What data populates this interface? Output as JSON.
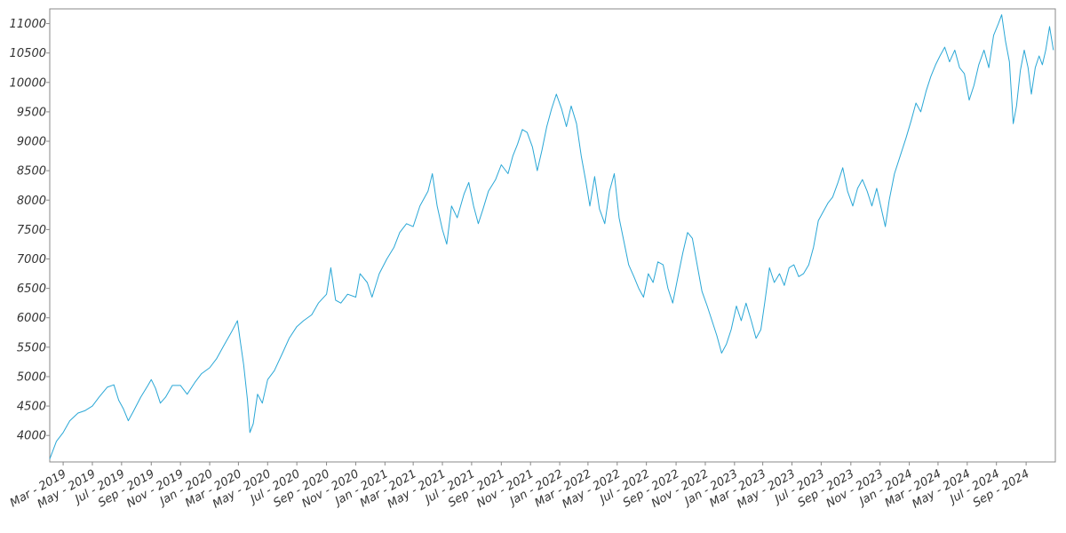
{
  "chart_data": {
    "type": "line",
    "title": "",
    "xlabel": "",
    "ylabel": "",
    "ylim": [
      3550,
      11250
    ],
    "xlim": [
      "2019-02-01",
      "2024-11-01"
    ],
    "grid": false,
    "line_color": "#2aa7d6",
    "yticks": [
      {
        "value": 4000,
        "label": "4000"
      },
      {
        "value": 4500,
        "label": "4500"
      },
      {
        "value": 5000,
        "label": "5000"
      },
      {
        "value": 5500,
        "label": "5500"
      },
      {
        "value": 6000,
        "label": "6000"
      },
      {
        "value": 6500,
        "label": "6500"
      },
      {
        "value": 7000,
        "label": "7000"
      },
      {
        "value": 7500,
        "label": "7500"
      },
      {
        "value": 8000,
        "label": "8000"
      },
      {
        "value": 8500,
        "label": "8500"
      },
      {
        "value": 9000,
        "label": "9000"
      },
      {
        "value": 9500,
        "label": "9500"
      },
      {
        "value": 10000,
        "label": "10000"
      },
      {
        "value": 10500,
        "label": "10500"
      },
      {
        "value": 11000,
        "label": "11000"
      }
    ],
    "xticks": [
      {
        "date": "2019-03-01",
        "label": "Mar - 2019"
      },
      {
        "date": "2019-05-01",
        "label": "May - 2019"
      },
      {
        "date": "2019-07-01",
        "label": "Jul - 2019"
      },
      {
        "date": "2019-09-01",
        "label": "Sep - 2019"
      },
      {
        "date": "2019-11-01",
        "label": "Nov - 2019"
      },
      {
        "date": "2020-01-01",
        "label": "Jan - 2020"
      },
      {
        "date": "2020-03-01",
        "label": "Mar - 2020"
      },
      {
        "date": "2020-05-01",
        "label": "May - 2020"
      },
      {
        "date": "2020-07-01",
        "label": "Jul - 2020"
      },
      {
        "date": "2020-09-01",
        "label": "Sep - 2020"
      },
      {
        "date": "2020-11-01",
        "label": "Nov - 2020"
      },
      {
        "date": "2021-01-01",
        "label": "Jan - 2021"
      },
      {
        "date": "2021-03-01",
        "label": "Mar - 2021"
      },
      {
        "date": "2021-05-01",
        "label": "May - 2021"
      },
      {
        "date": "2021-07-01",
        "label": "Jul - 2021"
      },
      {
        "date": "2021-09-01",
        "label": "Sep - 2021"
      },
      {
        "date": "2021-11-01",
        "label": "Nov - 2021"
      },
      {
        "date": "2022-01-01",
        "label": "Jan - 2022"
      },
      {
        "date": "2022-03-01",
        "label": "Mar - 2022"
      },
      {
        "date": "2022-05-01",
        "label": "May - 2022"
      },
      {
        "date": "2022-07-01",
        "label": "Jul - 2022"
      },
      {
        "date": "2022-09-01",
        "label": "Sep - 2022"
      },
      {
        "date": "2022-11-01",
        "label": "Nov - 2022"
      },
      {
        "date": "2023-01-01",
        "label": "Jan - 2023"
      },
      {
        "date": "2023-03-01",
        "label": "Mar - 2023"
      },
      {
        "date": "2023-05-01",
        "label": "May - 2023"
      },
      {
        "date": "2023-07-01",
        "label": "Jul - 2023"
      },
      {
        "date": "2023-09-01",
        "label": "Sep - 2023"
      },
      {
        "date": "2023-11-01",
        "label": "Nov - 2023"
      },
      {
        "date": "2024-01-01",
        "label": "Jan - 2024"
      },
      {
        "date": "2024-03-01",
        "label": "Mar - 2024"
      },
      {
        "date": "2024-05-01",
        "label": "May - 2024"
      },
      {
        "date": "2024-07-01",
        "label": "Jul - 2024"
      },
      {
        "date": "2024-09-01",
        "label": "Sep - 2024"
      }
    ],
    "series": [
      {
        "points": [
          [
            "2019-02-01",
            3600
          ],
          [
            "2019-02-15",
            3900
          ],
          [
            "2019-03-01",
            4050
          ],
          [
            "2019-03-15",
            4250
          ],
          [
            "2019-04-01",
            4380
          ],
          [
            "2019-04-15",
            4420
          ],
          [
            "2019-05-01",
            4500
          ],
          [
            "2019-05-15",
            4650
          ],
          [
            "2019-06-01",
            4820
          ],
          [
            "2019-06-15",
            4860
          ],
          [
            "2019-06-25",
            4600
          ],
          [
            "2019-07-05",
            4450
          ],
          [
            "2019-07-15",
            4250
          ],
          [
            "2019-07-25",
            4400
          ],
          [
            "2019-08-10",
            4650
          ],
          [
            "2019-08-25",
            4850
          ],
          [
            "2019-09-01",
            4950
          ],
          [
            "2019-09-10",
            4800
          ],
          [
            "2019-09-20",
            4550
          ],
          [
            "2019-10-01",
            4650
          ],
          [
            "2019-10-15",
            4850
          ],
          [
            "2019-11-01",
            4850
          ],
          [
            "2019-11-15",
            4700
          ],
          [
            "2019-12-01",
            4900
          ],
          [
            "2019-12-15",
            5050
          ],
          [
            "2020-01-01",
            5150
          ],
          [
            "2020-01-15",
            5300
          ],
          [
            "2020-02-01",
            5550
          ],
          [
            "2020-02-15",
            5750
          ],
          [
            "2020-02-28",
            5950
          ],
          [
            "2020-03-05",
            5600
          ],
          [
            "2020-03-12",
            5200
          ],
          [
            "2020-03-20",
            4600
          ],
          [
            "2020-03-25",
            4050
          ],
          [
            "2020-04-01",
            4200
          ],
          [
            "2020-04-10",
            4700
          ],
          [
            "2020-04-20",
            4550
          ],
          [
            "2020-05-01",
            4950
          ],
          [
            "2020-05-15",
            5100
          ],
          [
            "2020-06-01",
            5400
          ],
          [
            "2020-06-15",
            5650
          ],
          [
            "2020-07-01",
            5850
          ],
          [
            "2020-07-15",
            5950
          ],
          [
            "2020-08-01",
            6050
          ],
          [
            "2020-08-15",
            6250
          ],
          [
            "2020-09-01",
            6400
          ],
          [
            "2020-09-10",
            6850
          ],
          [
            "2020-09-20",
            6300
          ],
          [
            "2020-10-01",
            6250
          ],
          [
            "2020-10-15",
            6400
          ],
          [
            "2020-11-01",
            6350
          ],
          [
            "2020-11-10",
            6750
          ],
          [
            "2020-11-25",
            6600
          ],
          [
            "2020-12-05",
            6350
          ],
          [
            "2020-12-20",
            6750
          ],
          [
            "2021-01-05",
            7000
          ],
          [
            "2021-01-20",
            7200
          ],
          [
            "2021-02-01",
            7450
          ],
          [
            "2021-02-15",
            7600
          ],
          [
            "2021-03-01",
            7550
          ],
          [
            "2021-03-15",
            7900
          ],
          [
            "2021-04-01",
            8150
          ],
          [
            "2021-04-10",
            8450
          ],
          [
            "2021-04-20",
            7900
          ],
          [
            "2021-05-01",
            7500
          ],
          [
            "2021-05-10",
            7250
          ],
          [
            "2021-05-20",
            7900
          ],
          [
            "2021-06-01",
            7700
          ],
          [
            "2021-06-15",
            8100
          ],
          [
            "2021-06-25",
            8300
          ],
          [
            "2021-07-05",
            7900
          ],
          [
            "2021-07-15",
            7600
          ],
          [
            "2021-07-25",
            7850
          ],
          [
            "2021-08-05",
            8150
          ],
          [
            "2021-08-20",
            8350
          ],
          [
            "2021-09-01",
            8600
          ],
          [
            "2021-09-15",
            8450
          ],
          [
            "2021-09-25",
            8750
          ],
          [
            "2021-10-05",
            8950
          ],
          [
            "2021-10-15",
            9200
          ],
          [
            "2021-10-25",
            9150
          ],
          [
            "2021-11-05",
            8900
          ],
          [
            "2021-11-15",
            8500
          ],
          [
            "2021-11-25",
            8850
          ],
          [
            "2021-12-05",
            9250
          ],
          [
            "2021-12-15",
            9550
          ],
          [
            "2021-12-25",
            9800
          ],
          [
            "2022-01-05",
            9550
          ],
          [
            "2022-01-15",
            9250
          ],
          [
            "2022-01-25",
            9600
          ],
          [
            "2022-02-05",
            9300
          ],
          [
            "2022-02-15",
            8750
          ],
          [
            "2022-02-25",
            8300
          ],
          [
            "2022-03-05",
            7900
          ],
          [
            "2022-03-15",
            8400
          ],
          [
            "2022-03-25",
            7850
          ],
          [
            "2022-04-05",
            7600
          ],
          [
            "2022-04-15",
            8150
          ],
          [
            "2022-04-25",
            8450
          ],
          [
            "2022-05-05",
            7700
          ],
          [
            "2022-05-15",
            7300
          ],
          [
            "2022-05-25",
            6900
          ],
          [
            "2022-06-05",
            6700
          ],
          [
            "2022-06-15",
            6500
          ],
          [
            "2022-06-25",
            6350
          ],
          [
            "2022-07-05",
            6750
          ],
          [
            "2022-07-15",
            6600
          ],
          [
            "2022-07-25",
            6950
          ],
          [
            "2022-08-05",
            6900
          ],
          [
            "2022-08-15",
            6500
          ],
          [
            "2022-08-25",
            6250
          ],
          [
            "2022-09-05",
            6700
          ],
          [
            "2022-09-15",
            7100
          ],
          [
            "2022-09-25",
            7450
          ],
          [
            "2022-10-05",
            7350
          ],
          [
            "2022-10-15",
            6900
          ],
          [
            "2022-10-25",
            6450
          ],
          [
            "2022-11-05",
            6200
          ],
          [
            "2022-11-15",
            5950
          ],
          [
            "2022-11-25",
            5700
          ],
          [
            "2022-12-05",
            5400
          ],
          [
            "2022-12-15",
            5550
          ],
          [
            "2022-12-25",
            5800
          ],
          [
            "2023-01-05",
            6200
          ],
          [
            "2023-01-15",
            5950
          ],
          [
            "2023-01-25",
            6250
          ],
          [
            "2023-02-05",
            5950
          ],
          [
            "2023-02-15",
            5650
          ],
          [
            "2023-02-25",
            5800
          ],
          [
            "2023-03-05",
            6250
          ],
          [
            "2023-03-15",
            6850
          ],
          [
            "2023-03-25",
            6600
          ],
          [
            "2023-04-05",
            6750
          ],
          [
            "2023-04-15",
            6550
          ],
          [
            "2023-04-25",
            6850
          ],
          [
            "2023-05-05",
            6900
          ],
          [
            "2023-05-15",
            6700
          ],
          [
            "2023-05-25",
            6750
          ],
          [
            "2023-06-05",
            6900
          ],
          [
            "2023-06-15",
            7200
          ],
          [
            "2023-06-25",
            7650
          ],
          [
            "2023-07-05",
            7800
          ],
          [
            "2023-07-15",
            7950
          ],
          [
            "2023-07-25",
            8050
          ],
          [
            "2023-08-05",
            8300
          ],
          [
            "2023-08-15",
            8550
          ],
          [
            "2023-08-25",
            8150
          ],
          [
            "2023-09-05",
            7900
          ],
          [
            "2023-09-15",
            8200
          ],
          [
            "2023-09-25",
            8350
          ],
          [
            "2023-10-05",
            8150
          ],
          [
            "2023-10-15",
            7900
          ],
          [
            "2023-10-25",
            8200
          ],
          [
            "2023-11-05",
            7800
          ],
          [
            "2023-11-12",
            7550
          ],
          [
            "2023-11-20",
            8000
          ],
          [
            "2023-12-01",
            8450
          ],
          [
            "2023-12-15",
            8800
          ],
          [
            "2023-12-25",
            9050
          ],
          [
            "2024-01-05",
            9350
          ],
          [
            "2024-01-15",
            9650
          ],
          [
            "2024-01-25",
            9500
          ],
          [
            "2024-02-05",
            9850
          ],
          [
            "2024-02-15",
            10100
          ],
          [
            "2024-02-25",
            10300
          ],
          [
            "2024-03-05",
            10450
          ],
          [
            "2024-03-15",
            10600
          ],
          [
            "2024-03-25",
            10350
          ],
          [
            "2024-04-05",
            10550
          ],
          [
            "2024-04-15",
            10250
          ],
          [
            "2024-04-25",
            10150
          ],
          [
            "2024-05-05",
            9700
          ],
          [
            "2024-05-15",
            9950
          ],
          [
            "2024-05-25",
            10300
          ],
          [
            "2024-06-05",
            10550
          ],
          [
            "2024-06-15",
            10250
          ],
          [
            "2024-06-25",
            10800
          ],
          [
            "2024-07-05",
            11000
          ],
          [
            "2024-07-12",
            11150
          ],
          [
            "2024-07-20",
            10700
          ],
          [
            "2024-07-28",
            10350
          ],
          [
            "2024-08-05",
            9300
          ],
          [
            "2024-08-12",
            9600
          ],
          [
            "2024-08-20",
            10200
          ],
          [
            "2024-08-28",
            10550
          ],
          [
            "2024-09-05",
            10250
          ],
          [
            "2024-09-12",
            9800
          ],
          [
            "2024-09-20",
            10250
          ],
          [
            "2024-09-28",
            10450
          ],
          [
            "2024-10-05",
            10300
          ],
          [
            "2024-10-12",
            10550
          ],
          [
            "2024-10-20",
            10950
          ],
          [
            "2024-10-28",
            10550
          ]
        ]
      }
    ]
  }
}
